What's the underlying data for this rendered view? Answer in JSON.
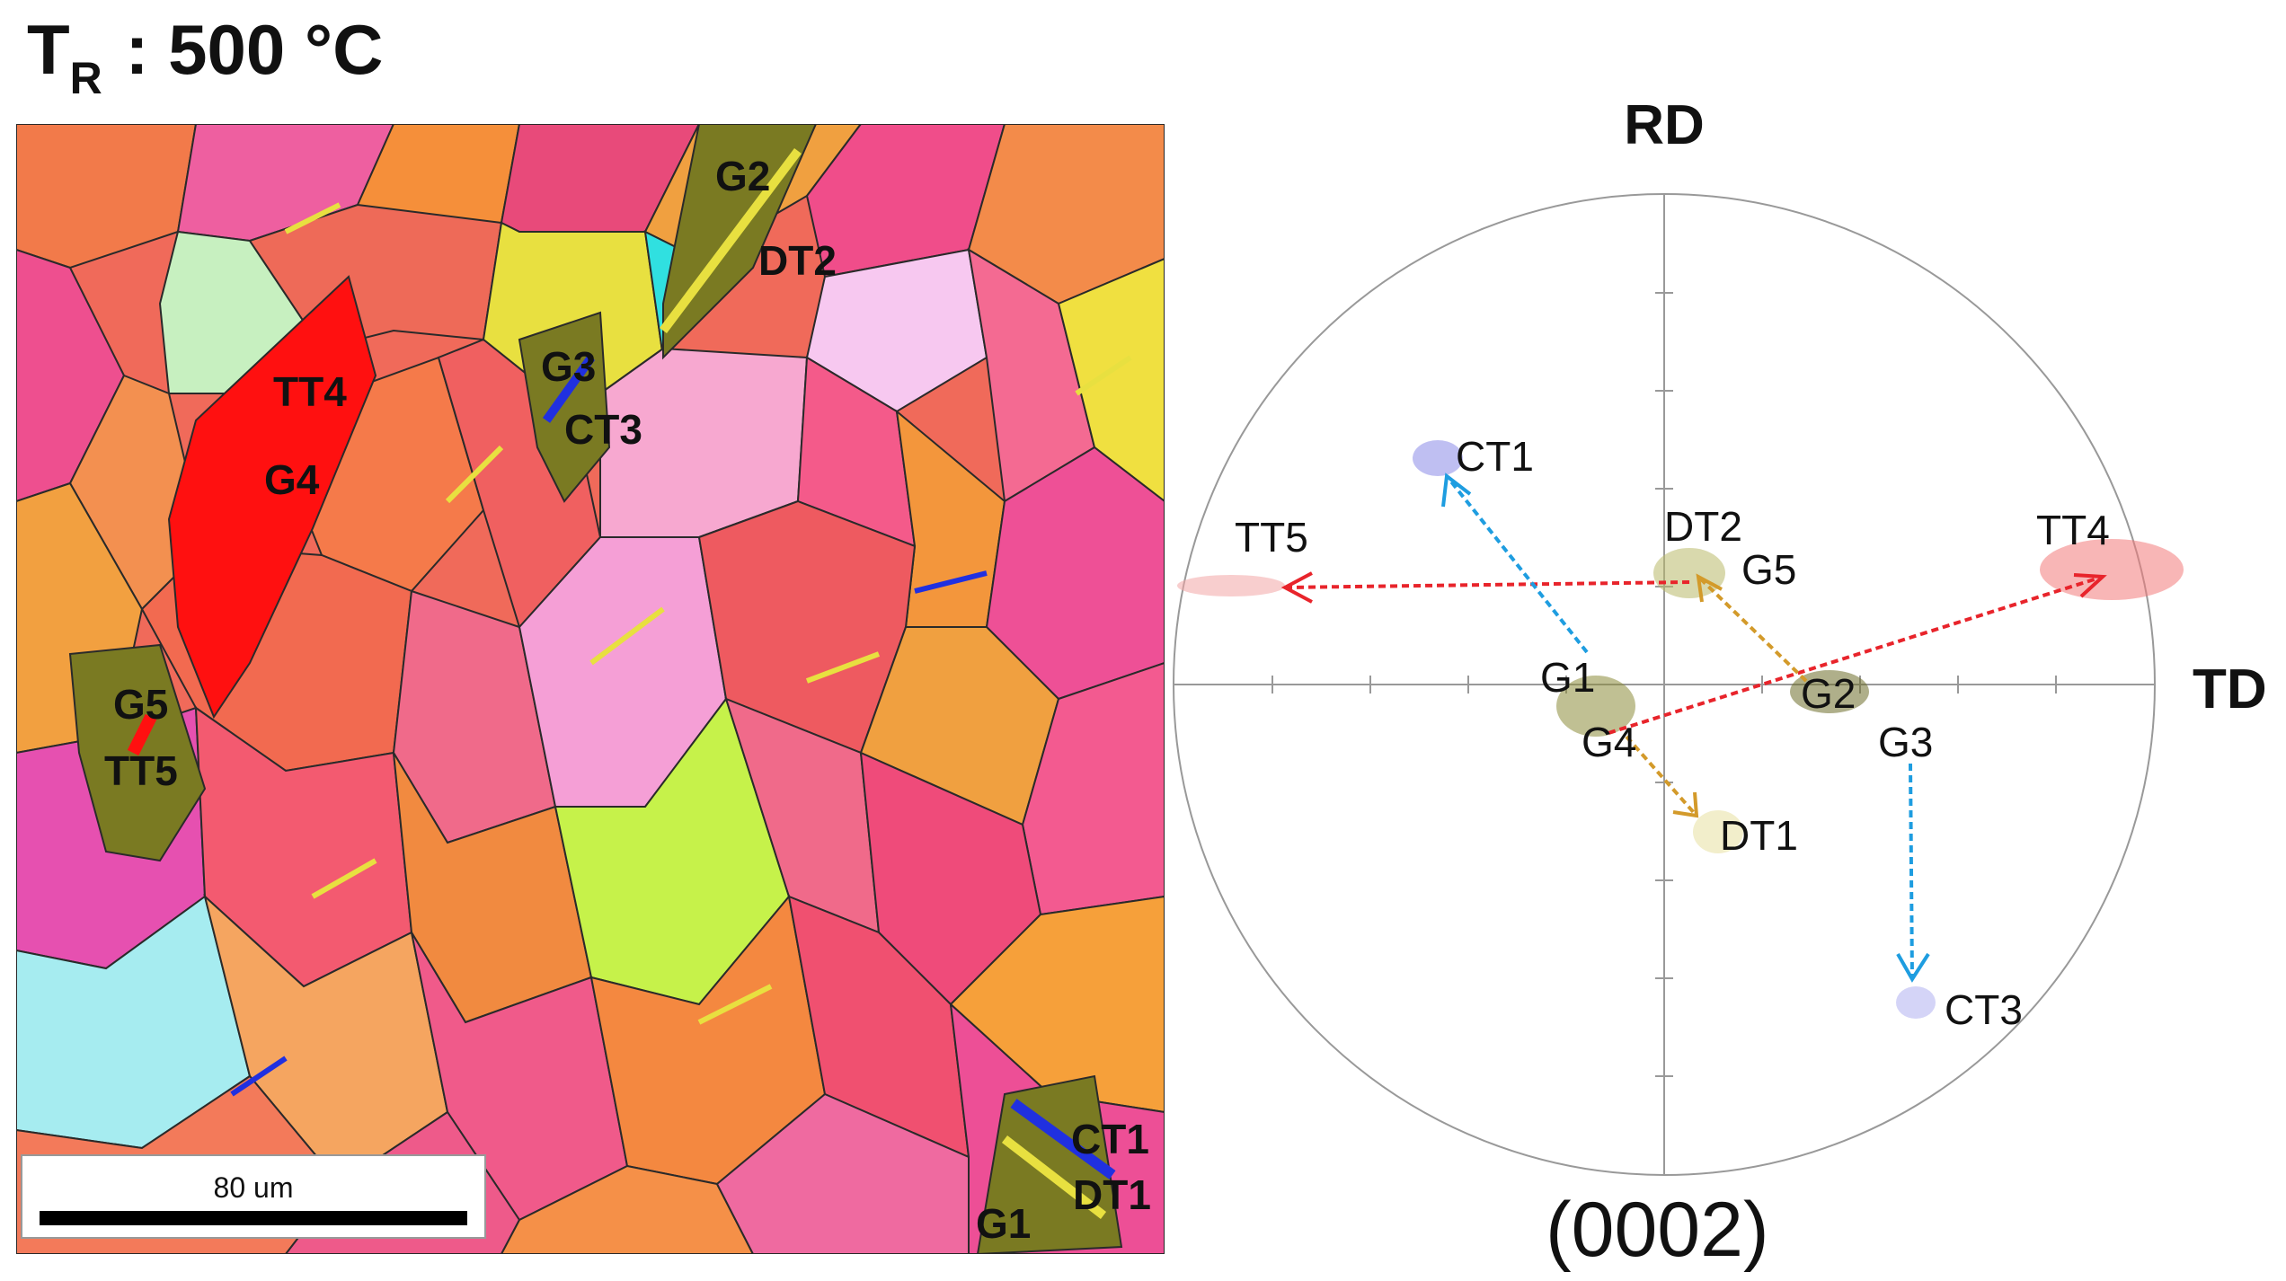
{
  "title": {
    "main": "T",
    "sub": "R",
    "rest": ": 500 °C"
  },
  "ebsd_map": {
    "scale_bar_label": "80 um",
    "labels": {
      "g1": "G1",
      "g2": "G2",
      "g3": "G3",
      "g4": "G4",
      "g5": "G5",
      "dt1": "DT1",
      "dt2": "DT2",
      "ct1": "CT1",
      "ct3": "CT3",
      "tt4": "TT4",
      "tt5": "TT5"
    }
  },
  "pole_figure": {
    "axis_rd": "RD",
    "axis_td": "TD",
    "caption": "(0002)",
    "labels": {
      "ct1": "CT1",
      "tt5": "TT5",
      "dt2": "DT2",
      "g5": "G5",
      "tt4": "TT4",
      "g1": "G1",
      "g2": "G2",
      "g4": "G4",
      "g3": "G3",
      "dt1": "DT1",
      "ct3": "CT3"
    },
    "colors": {
      "twin_tension": "#e8242b",
      "twin_compression": "#1e9de0",
      "twin_double": "#d39a2a",
      "grain": "#6b6b2a"
    }
  }
}
